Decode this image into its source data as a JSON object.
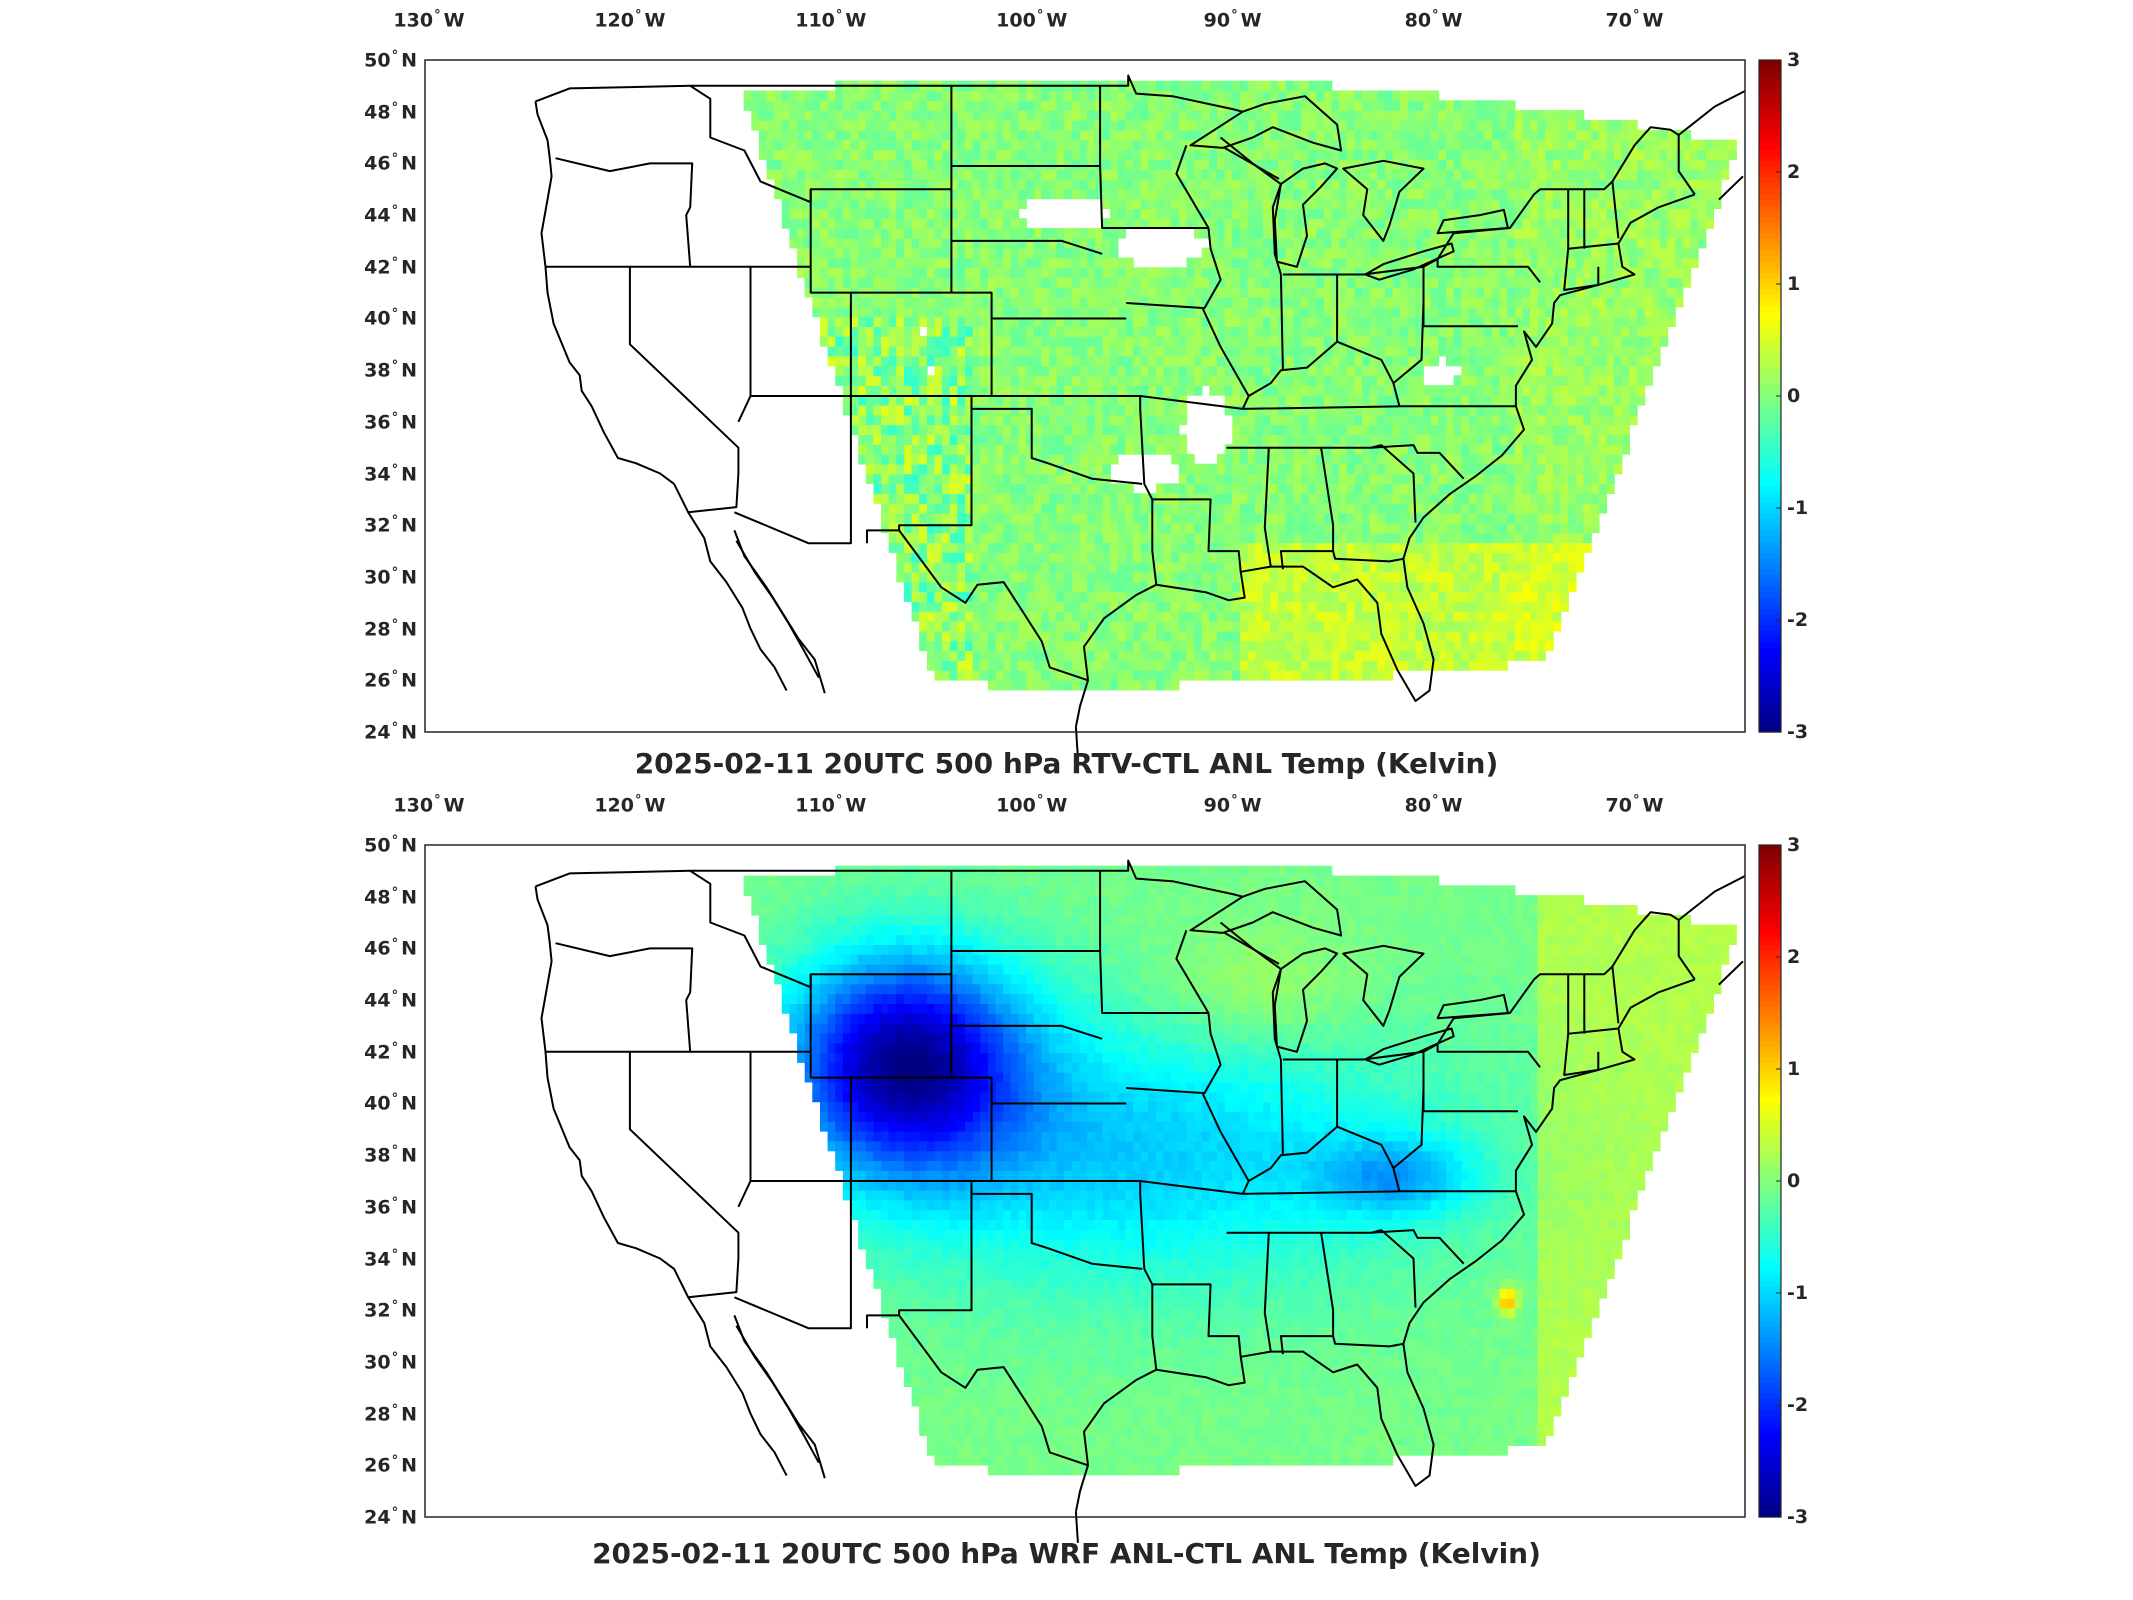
{
  "panels": [
    {
      "title": "2025-02-11 20UTC 500 hPa RTV-CTL ANL Temp (Kelvin)",
      "variant": "rtv",
      "lon_ticks": [
        {
          "value": -130,
          "num": "130",
          "hemi": "W"
        },
        {
          "value": -120,
          "num": "120",
          "hemi": "W"
        },
        {
          "value": -110,
          "num": "110",
          "hemi": "W"
        },
        {
          "value": -100,
          "num": "100",
          "hemi": "W"
        },
        {
          "value": -90,
          "num": "90",
          "hemi": "W"
        },
        {
          "value": -80,
          "num": "80",
          "hemi": "W"
        },
        {
          "value": -70,
          "num": "70",
          "hemi": "W"
        }
      ],
      "lat_ticks": [
        {
          "value": 50,
          "num": "50",
          "hemi": "N"
        },
        {
          "value": 48,
          "num": "48",
          "hemi": "N"
        },
        {
          "value": 46,
          "num": "46",
          "hemi": "N"
        },
        {
          "value": 44,
          "num": "44",
          "hemi": "N"
        },
        {
          "value": 42,
          "num": "42",
          "hemi": "N"
        },
        {
          "value": 40,
          "num": "40",
          "hemi": "N"
        },
        {
          "value": 38,
          "num": "38",
          "hemi": "N"
        },
        {
          "value": 36,
          "num": "36",
          "hemi": "N"
        },
        {
          "value": 34,
          "num": "34",
          "hemi": "N"
        },
        {
          "value": 32,
          "num": "32",
          "hemi": "N"
        },
        {
          "value": 30,
          "num": "30",
          "hemi": "N"
        },
        {
          "value": 28,
          "num": "28",
          "hemi": "N"
        },
        {
          "value": 26,
          "num": "26",
          "hemi": "N"
        },
        {
          "value": 24,
          "num": "24",
          "hemi": "N"
        }
      ],
      "colorbar": {
        "min": -3,
        "max": 3,
        "ticks": [
          "3",
          "2",
          "1",
          "0",
          "-1",
          "-2",
          "-3"
        ]
      }
    },
    {
      "title": "2025-02-11 20UTC 500 hPa WRF ANL-CTL ANL Temp (Kelvin)",
      "variant": "wrf",
      "lon_ticks": [
        {
          "value": -130,
          "num": "130",
          "hemi": "W"
        },
        {
          "value": -120,
          "num": "120",
          "hemi": "W"
        },
        {
          "value": -110,
          "num": "110",
          "hemi": "W"
        },
        {
          "value": -100,
          "num": "100",
          "hemi": "W"
        },
        {
          "value": -90,
          "num": "90",
          "hemi": "W"
        },
        {
          "value": -80,
          "num": "80",
          "hemi": "W"
        },
        {
          "value": -70,
          "num": "70",
          "hemi": "W"
        }
      ],
      "lat_ticks": [
        {
          "value": 50,
          "num": "50",
          "hemi": "N"
        },
        {
          "value": 48,
          "num": "48",
          "hemi": "N"
        },
        {
          "value": 46,
          "num": "46",
          "hemi": "N"
        },
        {
          "value": 44,
          "num": "44",
          "hemi": "N"
        },
        {
          "value": 42,
          "num": "42",
          "hemi": "N"
        },
        {
          "value": 40,
          "num": "40",
          "hemi": "N"
        },
        {
          "value": 38,
          "num": "38",
          "hemi": "N"
        },
        {
          "value": 36,
          "num": "36",
          "hemi": "N"
        },
        {
          "value": 34,
          "num": "34",
          "hemi": "N"
        },
        {
          "value": 32,
          "num": "32",
          "hemi": "N"
        },
        {
          "value": 30,
          "num": "30",
          "hemi": "N"
        },
        {
          "value": 28,
          "num": "28",
          "hemi": "N"
        },
        {
          "value": 26,
          "num": "26",
          "hemi": "N"
        },
        {
          "value": 24,
          "num": "24",
          "hemi": "N"
        }
      ],
      "colorbar": {
        "min": -3,
        "max": 3,
        "ticks": [
          "3",
          "2",
          "1",
          "0",
          "-1",
          "-2",
          "-3"
        ]
      }
    }
  ],
  "colormap": "jet"
}
